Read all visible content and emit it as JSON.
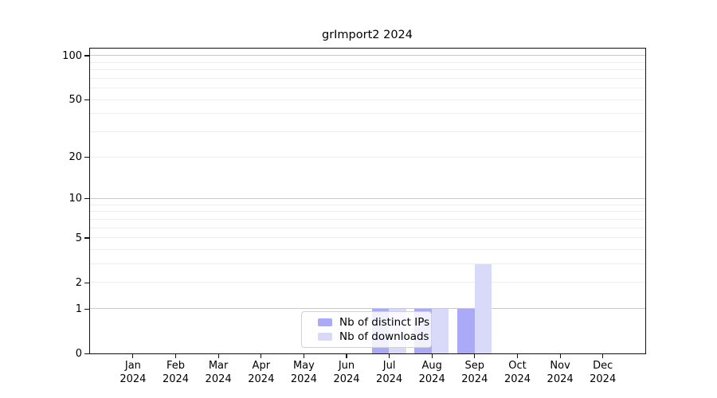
{
  "window": {
    "background": "#ffffff"
  },
  "chart_data": {
    "type": "bar",
    "title": "grImport2 2024",
    "categories": [
      "Jan\n2024",
      "Feb\n2024",
      "Mar\n2024",
      "Apr\n2024",
      "May\n2024",
      "Jun\n2024",
      "Jul\n2024",
      "Aug\n2024",
      "Sep\n2024",
      "Oct\n2024",
      "Nov\n2024",
      "Dec\n2024"
    ],
    "series": [
      {
        "name": "Nb of distinct IPs",
        "color": "#aaaaf8",
        "values": [
          0,
          0,
          0,
          0,
          0,
          0,
          1,
          1,
          1,
          0,
          0,
          0
        ]
      },
      {
        "name": "Nb of downloads",
        "color": "#d9d9fa",
        "values": [
          0,
          0,
          0,
          0,
          0,
          0,
          1,
          1,
          3,
          0,
          0,
          0
        ]
      }
    ],
    "y_axis": {
      "scale": "log1p",
      "tick_values": [
        0,
        1,
        2,
        5,
        10,
        20,
        50,
        100
      ],
      "tick_labels": [
        "0",
        "1",
        "2",
        "5",
        "10",
        "20",
        "50",
        "100"
      ],
      "ylim": [
        0,
        111
      ]
    },
    "grid": {
      "on": true,
      "major": [
        1,
        10,
        100
      ],
      "minor": [
        2,
        3,
        4,
        5,
        6,
        7,
        8,
        9,
        20,
        30,
        40,
        50,
        60,
        70,
        80,
        90
      ],
      "major_color": "#c9c9c9",
      "minor_color": "#ededed"
    },
    "legend": {
      "position": "bottom-center-inside"
    },
    "xlabel": "",
    "ylabel": ""
  }
}
